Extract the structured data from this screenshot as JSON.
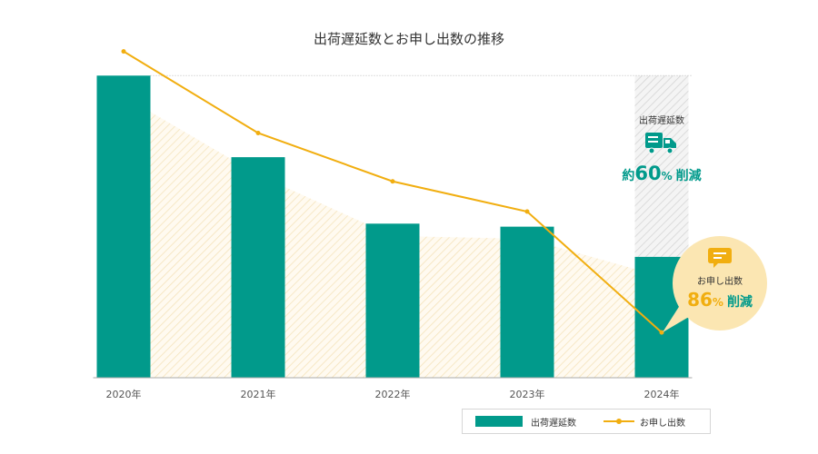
{
  "chart_data": {
    "type": "bar+line",
    "title": "出荷遅延数とお申し出数の推移",
    "categories": [
      "2020年",
      "2021年",
      "2022年",
      "2023年",
      "2024年"
    ],
    "series": [
      {
        "name": "出荷遅延数",
        "type": "bar",
        "values": [
          100,
          73,
          51,
          50,
          40
        ]
      },
      {
        "name": "お申し出数",
        "type": "line",
        "values": [
          108,
          81,
          65,
          55,
          15
        ]
      }
    ],
    "ylim": [
      0,
      110
    ],
    "legend_position": "bottom-right",
    "colors": {
      "bar": "#019a8b",
      "line": "#f1ae10",
      "bubble": "#fbe6b2",
      "callout_text": "#019a8b"
    },
    "annotations": {
      "delay": {
        "label": "出荷遅延数",
        "prefix": "約",
        "value": "60",
        "unit": "%",
        "suffix": "削減",
        "icon": "truck-icon"
      },
      "inquiry": {
        "label": "お申し出数",
        "value": "86",
        "unit": "%",
        "suffix": "削減",
        "icon": "chat-bubble-icon"
      }
    }
  }
}
